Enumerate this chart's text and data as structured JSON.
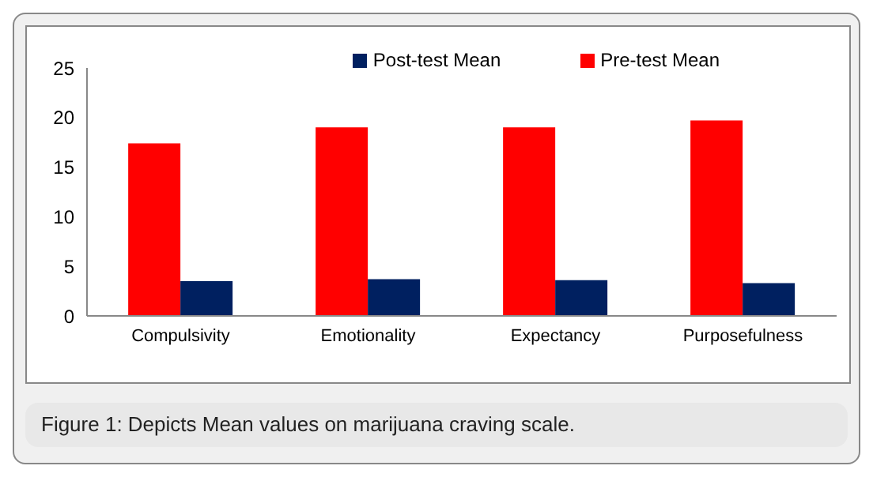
{
  "chart_data": {
    "type": "bar",
    "categories": [
      "Compulsivity",
      "Emotionality",
      "Expectancy",
      "Purposefulness"
    ],
    "series": [
      {
        "name": "Pre-test Mean",
        "color": "#ff0000",
        "values": [
          17.4,
          19.0,
          19.0,
          19.7
        ]
      },
      {
        "name": "Post-test Mean",
        "color": "#002060",
        "values": [
          3.5,
          3.7,
          3.6,
          3.3
        ]
      }
    ],
    "ylim": [
      0,
      25
    ],
    "yticks": [
      0,
      5,
      10,
      15,
      20,
      25
    ],
    "grid": false,
    "legend": "top right",
    "annotations": [
      "Figure 1: Depicts Mean values on marijuana craving scale."
    ]
  }
}
